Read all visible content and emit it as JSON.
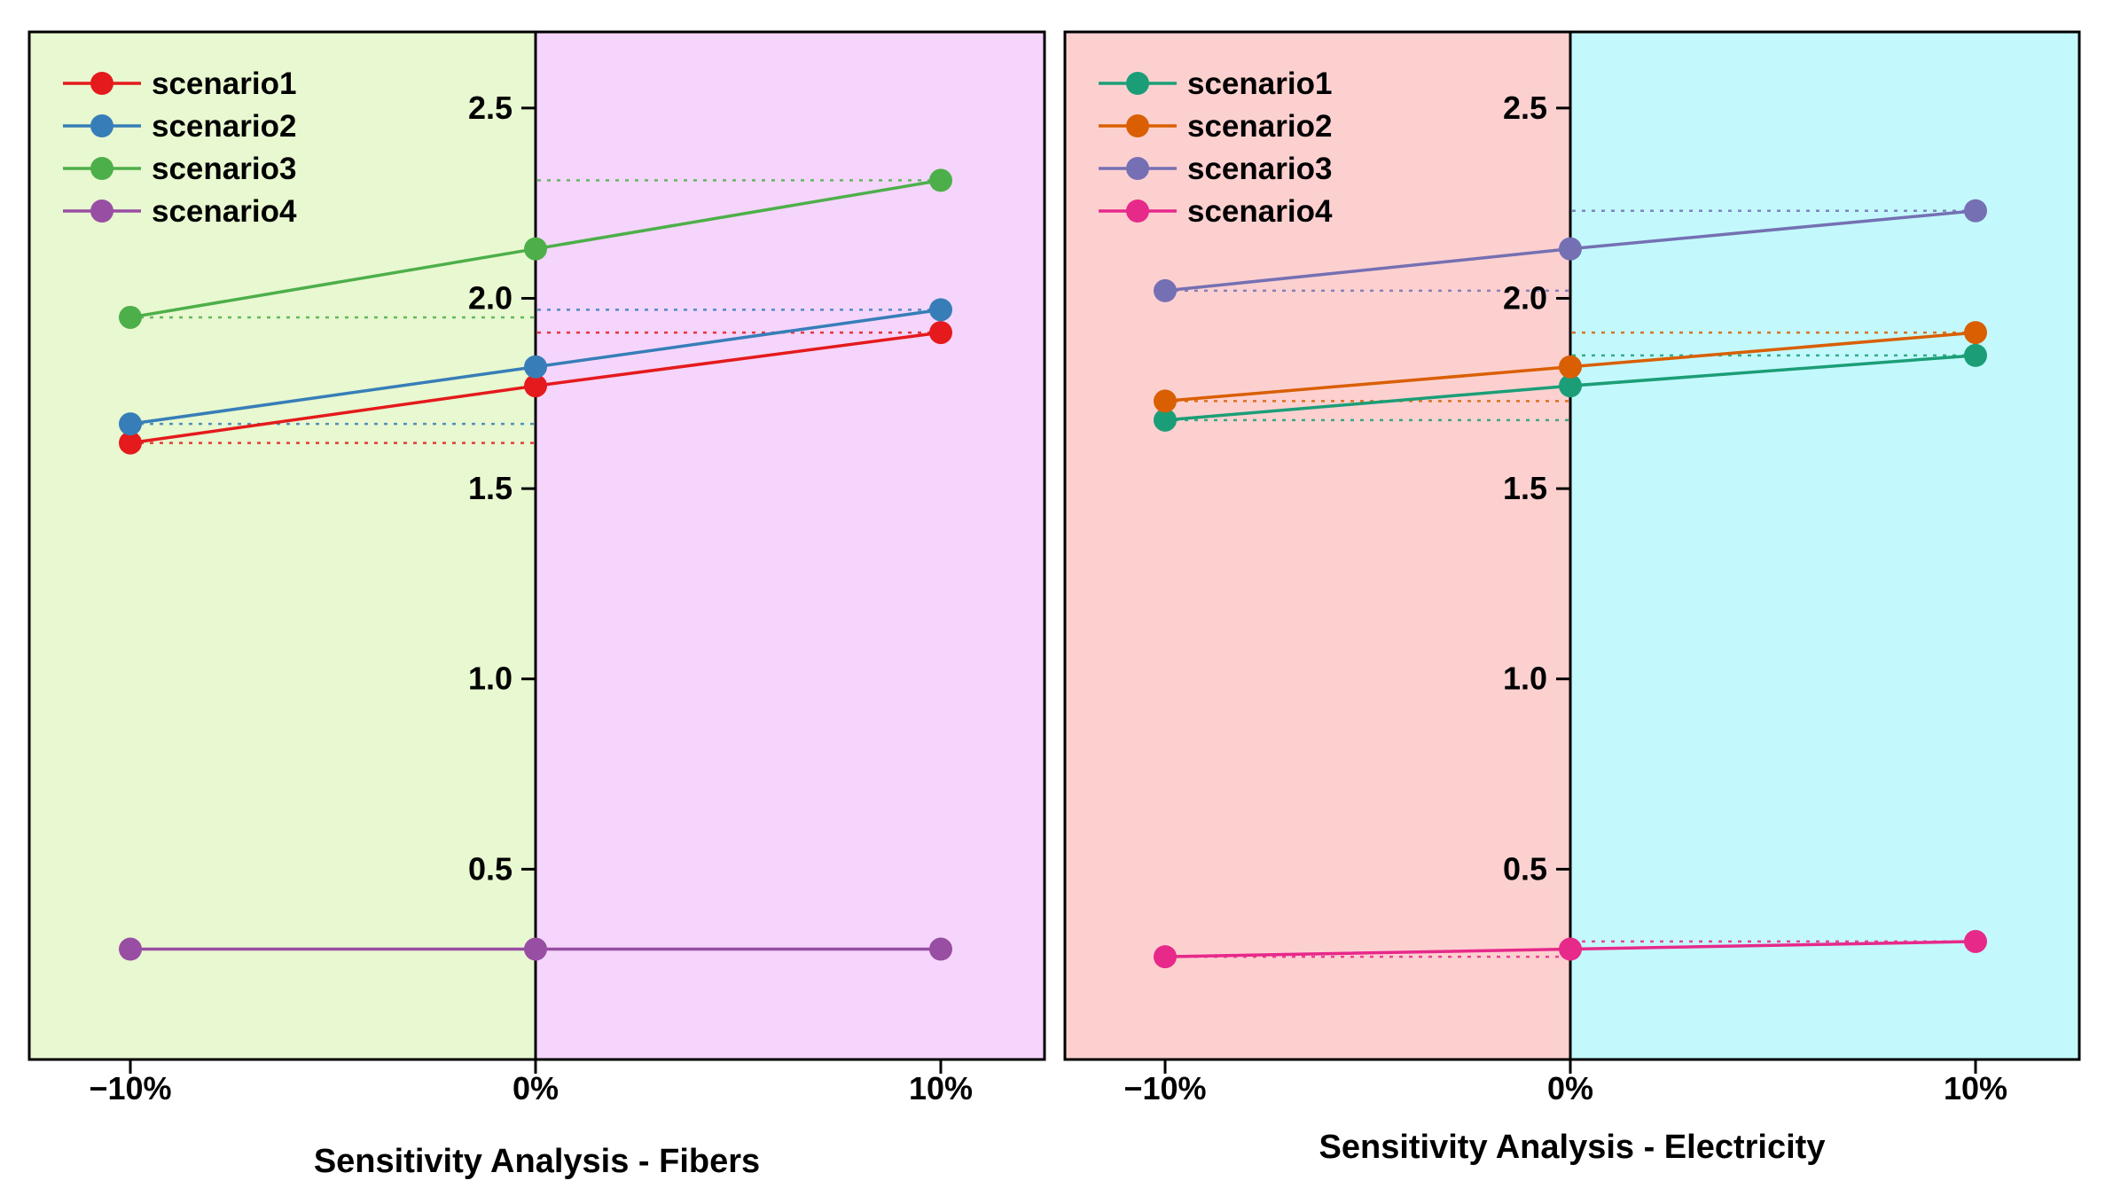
{
  "chart_data": [
    {
      "type": "line",
      "xlabel": "Sensitivity Analysis - Fibers",
      "ylabel": "",
      "categories": [
        "−10%",
        "0%",
        "10%"
      ],
      "yticks": [
        "0.5",
        "1.0",
        "1.5",
        "2.0",
        "2.5"
      ],
      "ylim": [
        0.0,
        2.7
      ],
      "regions": [
        {
          "from": "−10%",
          "to": "0%",
          "color": "#e8f8d0"
        },
        {
          "from": "0%",
          "to": "10%",
          "color": "#f5d5fb"
        }
      ],
      "legend": "top-left",
      "series": [
        {
          "name": "scenario1",
          "color": "#e41a1c",
          "values": [
            1.62,
            1.77,
            1.91
          ]
        },
        {
          "name": "scenario2",
          "color": "#377eb8",
          "values": [
            1.67,
            1.82,
            1.97
          ]
        },
        {
          "name": "scenario3",
          "color": "#4daf4a",
          "values": [
            1.95,
            2.13,
            2.31
          ]
        },
        {
          "name": "scenario4",
          "color": "#984ea3",
          "values": [
            0.29,
            0.29,
            0.29
          ]
        }
      ]
    },
    {
      "type": "line",
      "xlabel": "Sensitivity Analysis - Electricity",
      "ylabel": "",
      "categories": [
        "−10%",
        "0%",
        "10%"
      ],
      "yticks": [
        "0.5",
        "1.0",
        "1.5",
        "2.0",
        "2.5"
      ],
      "ylim": [
        0.0,
        2.7
      ],
      "regions": [
        {
          "from": "−10%",
          "to": "0%",
          "color": "#fdd0d0"
        },
        {
          "from": "0%",
          "to": "10%",
          "color": "#c3f9fc"
        }
      ],
      "legend": "top-left",
      "series": [
        {
          "name": "scenario1",
          "color": "#1b9e77",
          "values": [
            1.68,
            1.77,
            1.85
          ]
        },
        {
          "name": "scenario2",
          "color": "#d95f02",
          "values": [
            1.73,
            1.82,
            1.91
          ]
        },
        {
          "name": "scenario3",
          "color": "#7570b3",
          "values": [
            2.02,
            2.13,
            2.23
          ]
        },
        {
          "name": "scenario4",
          "color": "#e7298a",
          "values": [
            0.27,
            0.29,
            0.31
          ]
        }
      ]
    }
  ]
}
